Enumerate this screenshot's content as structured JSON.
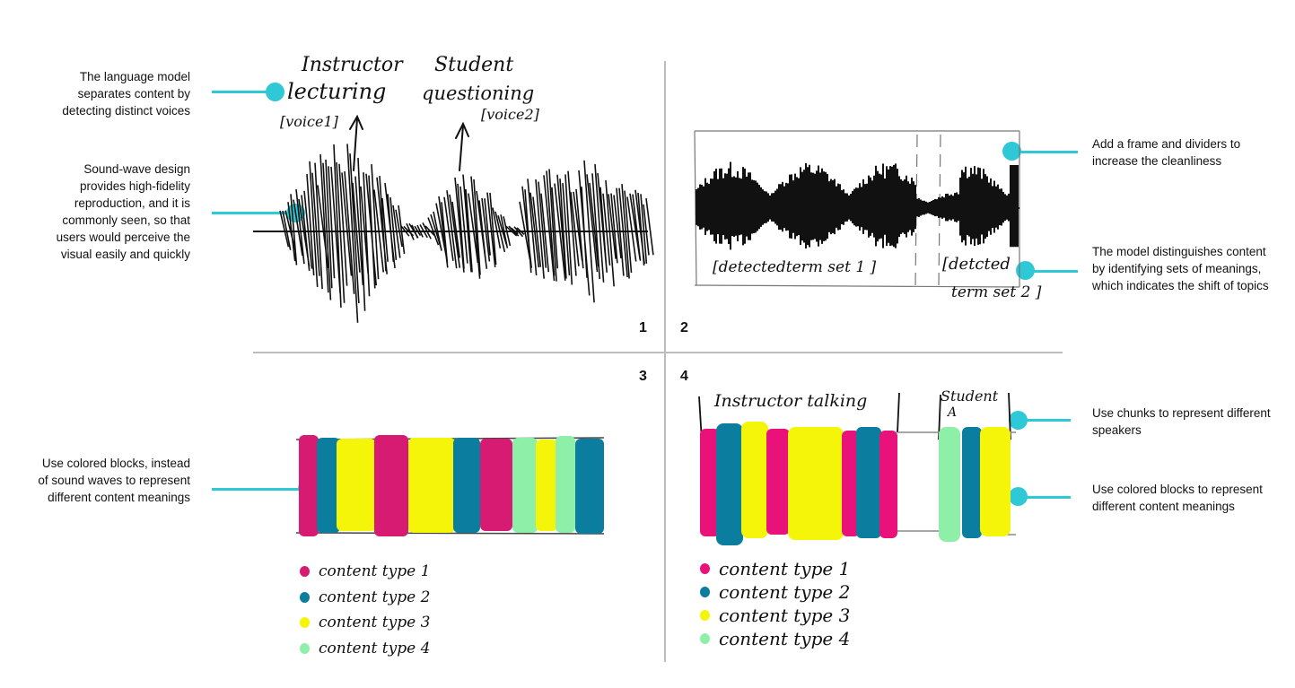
{
  "annotations": {
    "voices": "The language model separates content by detecting distinct voices",
    "soundwave": "Sound-wave design provides high-fidelity reproduction, and it is commonly seen, so that users would perceive the visual easily and quickly",
    "frame": "Add a frame and dividers to increase the cleanliness",
    "meanings": "The model distinguishes content by identifying sets of meanings, which indicates the shift of topics",
    "colored_blocks_left": "Use colored blocks, instead of sound waves to represent different content meanings",
    "chunks": "Use chunks to represent different speakers",
    "colored_blocks_right": "Use colored blocks to represent different content meanings"
  },
  "quadrants": {
    "q1": "1",
    "q2": "2",
    "q3": "3",
    "q4": "4"
  },
  "sketch1": {
    "label_instructor": "Instructor",
    "label_lecturing": "lecturing",
    "label_voice1": "[voice1]",
    "label_student": "Student",
    "label_questioning": "questioning",
    "label_voice2": "[voice2]"
  },
  "sketch2": {
    "term_set_1": "[detectedterm set 1 ]",
    "term_set_2_line1": "[detcted",
    "term_set_2_line2": "term set 2 ]"
  },
  "sketch4": {
    "instructor_talking": "Instructor talking",
    "student_line1": "Student",
    "student_line2": "A"
  },
  "legend_left": [
    {
      "label": "content type 1",
      "color": "#d81b72"
    },
    {
      "label": "content type 2",
      "color": "#0b7d9e"
    },
    {
      "label": "content type 3",
      "color": "#f5f50a"
    },
    {
      "label": "content type 4",
      "color": "#8ef0a8"
    }
  ],
  "legend_right": [
    {
      "label": "content type 1",
      "color": "#e8127a"
    },
    {
      "label": "content type 2",
      "color": "#0b7d9e"
    },
    {
      "label": "content type 3",
      "color": "#f5f50a"
    },
    {
      "label": "content type 4",
      "color": "#8ef0a8"
    }
  ],
  "colors": {
    "accent": "#2ec8d6",
    "magenta": "#d81b72",
    "teal": "#0b7d9e",
    "yellow": "#f5f50a",
    "mint": "#8ef0a8"
  }
}
